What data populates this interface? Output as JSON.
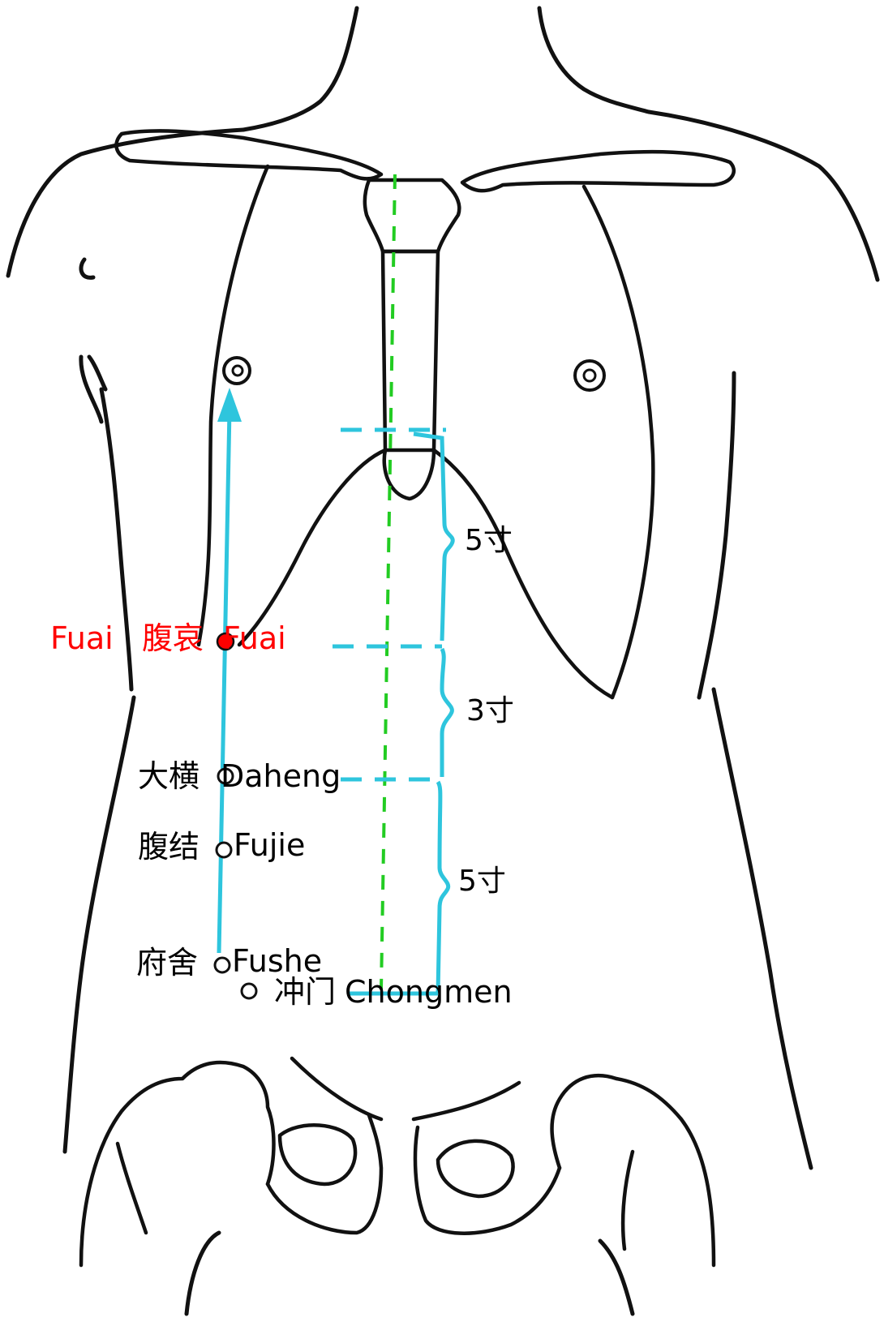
{
  "colors": {
    "outline": "#111111",
    "guide": "#2ec5dd",
    "midline": "#22cc22",
    "highlight": "#ff0000",
    "text": "#000000"
  },
  "highlight_point": {
    "pinyin_left": "Fuai",
    "hanzi": "腹哀",
    "pinyin_right": "Fuai"
  },
  "points": [
    {
      "hanzi": "大横",
      "pinyin": "Daheng"
    },
    {
      "hanzi": "腹结",
      "pinyin": "Fujie"
    },
    {
      "hanzi": "府舍",
      "pinyin": "Fushe"
    },
    {
      "hanzi": "冲门",
      "pinyin": "Chongmen"
    }
  ],
  "measurements": [
    {
      "label": "5寸"
    },
    {
      "label": "3寸"
    },
    {
      "label": "5寸"
    }
  ]
}
